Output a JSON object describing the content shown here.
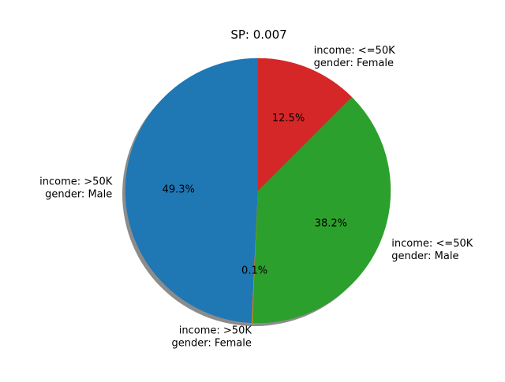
{
  "chart_data": {
    "type": "pie",
    "title": "SP: 0.007",
    "categories": [
      [
        "income: >50K",
        "gender: Male"
      ],
      [
        "income: >50K",
        "gender: Female"
      ],
      [
        "income: <=50K",
        "gender: Male"
      ],
      [
        "income: <=50K",
        "gender: Female"
      ]
    ],
    "values": [
      49.3,
      0.1,
      38.2,
      12.5
    ],
    "value_labels": [
      "49.3%",
      "0.1%",
      "38.2%",
      "12.5%"
    ],
    "colors": [
      "#1f77b4",
      "#ff7f0e",
      "#2ca02c",
      "#d62728"
    ],
    "start_angle_deg": 90,
    "direction": "counterclockwise",
    "shadow": true
  }
}
